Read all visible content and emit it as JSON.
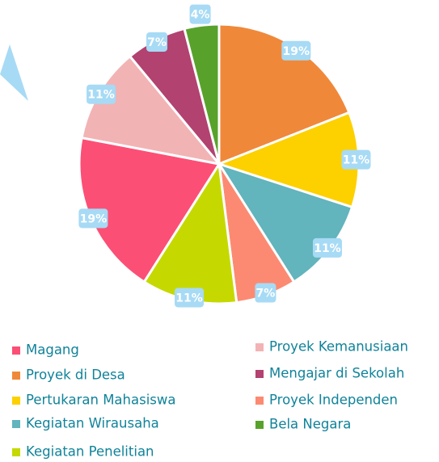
{
  "chart_data": {
    "type": "pie",
    "categories": [
      "Proyek di Desa",
      "Pertukaran Mahasiswa",
      "Kegiatan Wirausaha",
      "Proyek Independen",
      "Kegiatan Penelitian",
      "Magang",
      "Proyek Kemanusiaan",
      "Mengajar di Sekolah",
      "Bela Negara"
    ],
    "values": [
      19,
      11,
      11,
      7,
      11,
      19,
      11,
      7,
      4
    ],
    "value_labels": [
      "19%",
      "11%",
      "11%",
      "7%",
      "11%",
      "19%",
      "11%",
      "7%",
      "4%"
    ],
    "colors": [
      "#f0883a",
      "#fdd000",
      "#62b4bd",
      "#fc8a72",
      "#c5d900",
      "#fc4f76",
      "#f2b3b5",
      "#b24270",
      "#58a22c"
    ]
  }
}
